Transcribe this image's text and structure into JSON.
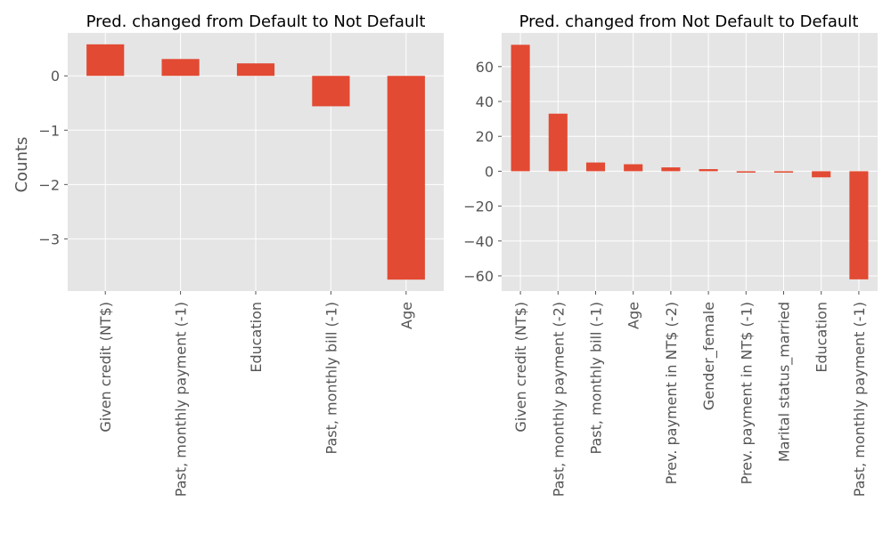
{
  "figure": {
    "background": "#ffffff",
    "axes_facecolor": "#e5e5e5",
    "grid_color": "#ffffff",
    "bar_color": "#e24a33",
    "tick_color": "#555555"
  },
  "chart_data": [
    {
      "type": "bar",
      "title": "Pred. changed from Default to Not Default",
      "xlabel": "",
      "ylabel": "Counts",
      "grid": true,
      "categories": [
        "Given credit (NT$)",
        "Past, monthly payment (-1)",
        "Education",
        "Past, monthly bill (-1)",
        "Age"
      ],
      "values": [
        0.58,
        0.31,
        0.23,
        -0.56,
        -3.75
      ],
      "ylim": [
        -3.96,
        0.79
      ],
      "yticks": [
        0,
        -1,
        -2,
        -3
      ],
      "ytick_labels": [
        "0",
        "−1",
        "−2",
        "−3"
      ]
    },
    {
      "type": "bar",
      "title": "Pred. changed from Not Default to Default",
      "xlabel": "",
      "ylabel": "",
      "grid": true,
      "categories": [
        "Given credit (NT$)",
        "Past, monthly payment (-2)",
        "Past, monthly bill (-1)",
        "Age",
        "Prev. payment in NT$ (-2)",
        "Gender_female",
        "Prev. payment in NT$ (-1)",
        "Marital status_married",
        "Education",
        "Past, monthly payment (-1)"
      ],
      "values": [
        72.5,
        33,
        5,
        4,
        2.2,
        1.2,
        -0.8,
        -0.8,
        -3.5,
        -62
      ],
      "ylim": [
        -68.7,
        79.3
      ],
      "yticks": [
        60,
        40,
        20,
        0,
        -20,
        -40,
        -60
      ],
      "ytick_labels": [
        "60",
        "40",
        "20",
        "0",
        "−20",
        "−40",
        "−60"
      ]
    }
  ]
}
